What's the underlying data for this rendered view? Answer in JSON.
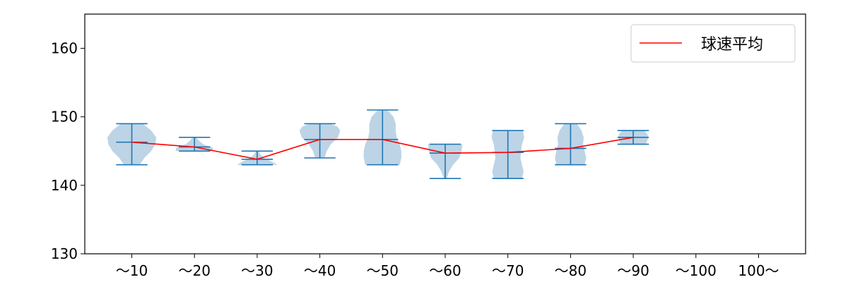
{
  "chart_data": {
    "type": "violin",
    "categories": [
      "〜10",
      "〜20",
      "〜30",
      "〜40",
      "〜50",
      "〜60",
      "〜70",
      "〜80",
      "〜90",
      "〜100",
      "100〜"
    ],
    "yticks": [
      130,
      140,
      150,
      160
    ],
    "ylim": [
      130,
      165
    ],
    "grid": false,
    "legend": {
      "position": "top-right",
      "entries": [
        {
          "label": "球速平均",
          "color": "#ff0000"
        }
      ]
    },
    "colors": {
      "violin_fill": "#bcd4e6",
      "whisker": "#1f77b4",
      "mean_line": "#ff0000"
    },
    "series": [
      {
        "name": "球速平均",
        "values": [
          146.3,
          145.6,
          143.8,
          146.7,
          146.7,
          144.7,
          144.8,
          145.4,
          147.0,
          null,
          null
        ]
      }
    ],
    "distribution": [
      {
        "category": "〜10",
        "min": 143,
        "max": 149,
        "median": 146.3,
        "profile": [
          [
            143,
            0.25
          ],
          [
            144,
            0.4
          ],
          [
            145,
            0.62
          ],
          [
            146,
            0.75
          ],
          [
            147,
            0.78
          ],
          [
            148,
            0.62
          ],
          [
            149,
            0.35
          ]
        ]
      },
      {
        "category": "〜20",
        "min": 145,
        "max": 147,
        "median": 145.6,
        "profile": [
          [
            145,
            0.6
          ],
          [
            145.5,
            0.58
          ],
          [
            146,
            0.28
          ],
          [
            146.5,
            0.15
          ],
          [
            147,
            0.05
          ]
        ]
      },
      {
        "category": "〜30",
        "min": 143,
        "max": 145,
        "median": 143.8,
        "profile": [
          [
            143,
            0.65
          ],
          [
            143.5,
            0.45
          ],
          [
            144,
            0.22
          ],
          [
            144.5,
            0.1
          ],
          [
            145,
            0.05
          ]
        ]
      },
      {
        "category": "〜40",
        "min": 144,
        "max": 149,
        "median": 146.7,
        "profile": [
          [
            144,
            0.15
          ],
          [
            145,
            0.22
          ],
          [
            146,
            0.35
          ],
          [
            147,
            0.58
          ],
          [
            148,
            0.65
          ],
          [
            148.6,
            0.55
          ],
          [
            149,
            0.3
          ]
        ]
      },
      {
        "category": "〜50",
        "min": 143,
        "max": 151,
        "median": 146.7,
        "profile": [
          [
            143,
            0.55
          ],
          [
            144,
            0.6
          ],
          [
            145,
            0.6
          ],
          [
            146,
            0.55
          ],
          [
            147,
            0.45
          ],
          [
            148,
            0.42
          ],
          [
            149,
            0.42
          ],
          [
            150,
            0.35
          ],
          [
            151,
            0.15
          ]
        ]
      },
      {
        "category": "〜60",
        "min": 141,
        "max": 146,
        "median": 144.7,
        "profile": [
          [
            141,
            0.05
          ],
          [
            142,
            0.12
          ],
          [
            143,
            0.25
          ],
          [
            144,
            0.45
          ],
          [
            145,
            0.52
          ],
          [
            146,
            0.55
          ]
        ]
      },
      {
        "category": "〜70",
        "min": 141,
        "max": 148,
        "median": 144.8,
        "profile": [
          [
            141,
            0.45
          ],
          [
            142,
            0.5
          ],
          [
            143,
            0.45
          ],
          [
            144,
            0.4
          ],
          [
            145,
            0.42
          ],
          [
            146,
            0.45
          ],
          [
            147,
            0.52
          ],
          [
            148,
            0.48
          ]
        ]
      },
      {
        "category": "〜80",
        "min": 143,
        "max": 149,
        "median": 145.4,
        "profile": [
          [
            143,
            0.45
          ],
          [
            144,
            0.5
          ],
          [
            145,
            0.45
          ],
          [
            146,
            0.4
          ],
          [
            147,
            0.42
          ],
          [
            148,
            0.35
          ],
          [
            149,
            0.2
          ]
        ]
      },
      {
        "category": "〜90",
        "min": 146,
        "max": 148,
        "median": 147.0,
        "profile": [
          [
            146,
            0.4
          ],
          [
            146.5,
            0.45
          ],
          [
            147,
            0.48
          ],
          [
            147.5,
            0.45
          ],
          [
            148,
            0.35
          ]
        ]
      },
      {
        "category": "〜100",
        "min": null,
        "max": null,
        "median": null,
        "profile": []
      },
      {
        "category": "100〜",
        "min": null,
        "max": null,
        "median": null,
        "profile": []
      }
    ]
  }
}
